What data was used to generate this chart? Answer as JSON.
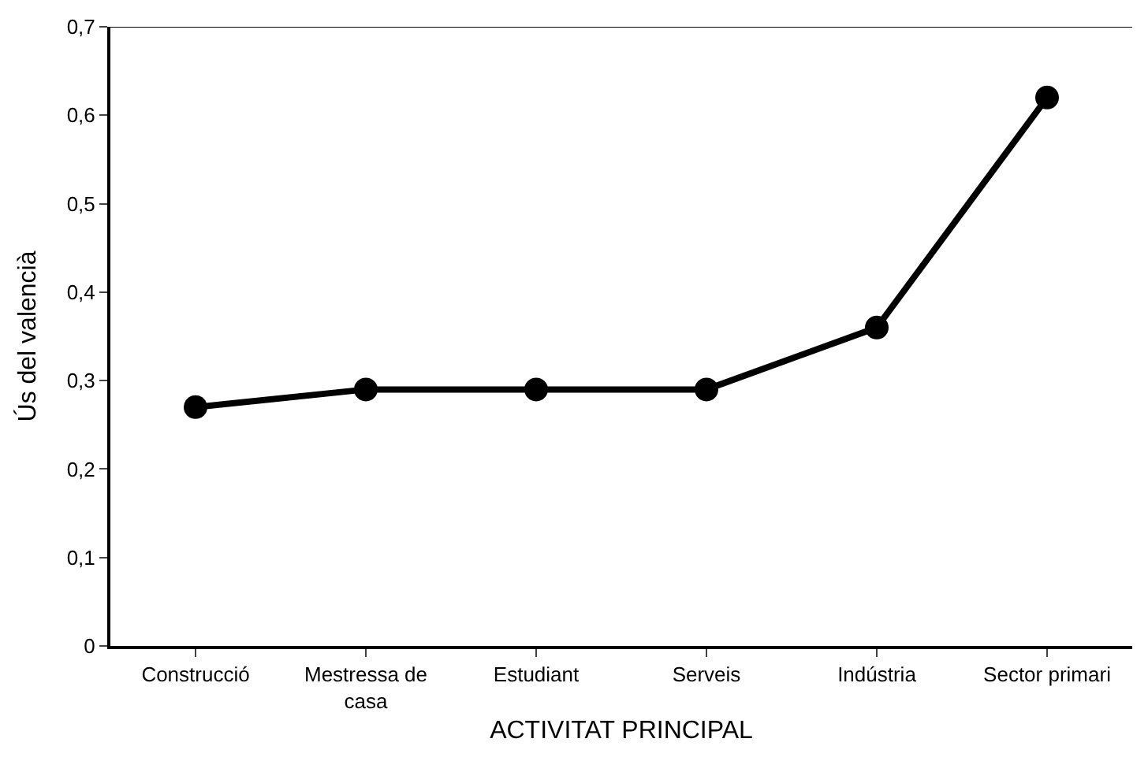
{
  "chart_data": {
    "type": "line",
    "xlabel": "ACTIVITAT PRINCIPAL",
    "ylabel": "Ús del valencià",
    "categories": [
      "Construcció",
      "Mestressa de casa",
      "Estudiant",
      "Serveis",
      "Indústria",
      "Sector primari"
    ],
    "series": [
      {
        "color": "#000000",
        "values": [
          0.27,
          0.29,
          0.29,
          0.29,
          0.36,
          0.62
        ]
      }
    ],
    "ylim": [
      0,
      0.7
    ],
    "yticks": [
      0,
      {
        "value": 0.1,
        "label": "0,1"
      },
      {
        "value": 0.2,
        "label": "0,2"
      },
      {
        "value": 0.3,
        "label": "0,3"
      },
      {
        "value": 0.4,
        "label": "0,4"
      },
      {
        "value": 0.5,
        "label": "0,5"
      },
      {
        "value": 0.6,
        "label": "0,6"
      },
      {
        "value": 0.7,
        "label": "0,7"
      }
    ],
    "legend": false,
    "marker": "circle",
    "line_style": "solid"
  }
}
